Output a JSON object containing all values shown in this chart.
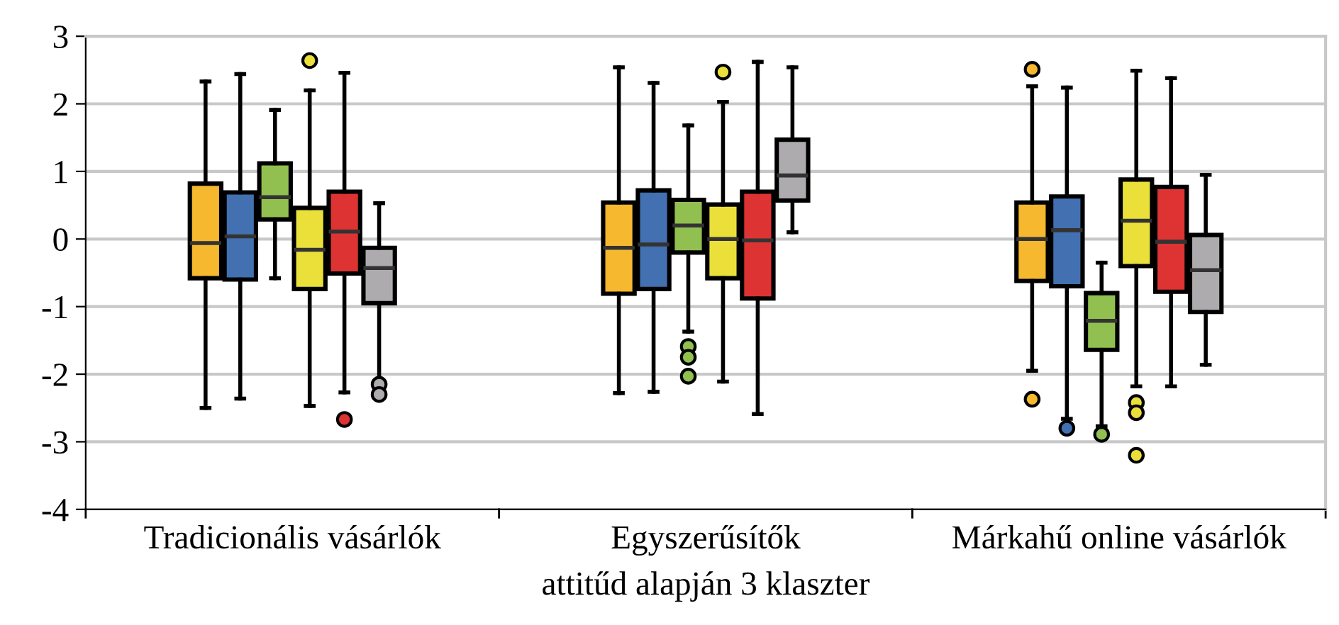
{
  "chart_data": {
    "type": "box",
    "xlabel": "attitűd alapján 3 klaszter",
    "categories": [
      "Tradicionális vásárlók",
      "Egyszerűsítők",
      "Márkahű online vásárlók"
    ],
    "ylim": [
      -4,
      3
    ],
    "yticks": [
      -4,
      -3,
      -2,
      -1,
      0,
      1,
      2,
      3
    ],
    "grid": "y",
    "series": [
      {
        "color": "#f5b82e",
        "boxes": [
          {
            "low": -2.5,
            "q1": -0.58,
            "median": -0.06,
            "q3": 0.82,
            "high": 2.33
          },
          {
            "low": -2.28,
            "q1": -0.81,
            "median": -0.13,
            "q3": 0.54,
            "high": 2.54
          },
          {
            "low": -1.95,
            "q1": -0.62,
            "median": 0.0,
            "q3": 0.54,
            "high": 2.26,
            "outliers": [
              2.51,
              -2.37
            ]
          }
        ]
      },
      {
        "color": "#4270b0",
        "boxes": [
          {
            "low": -2.36,
            "q1": -0.6,
            "median": 0.04,
            "q3": 0.69,
            "high": 2.44
          },
          {
            "low": -2.26,
            "q1": -0.74,
            "median": -0.08,
            "q3": 0.72,
            "high": 2.31
          },
          {
            "low": -2.66,
            "q1": -0.7,
            "median": 0.13,
            "q3": 0.63,
            "high": 2.24,
            "outliers": [
              -2.8
            ]
          }
        ]
      },
      {
        "color": "#92c050",
        "boxes": [
          {
            "low": -0.58,
            "q1": 0.29,
            "median": 0.62,
            "q3": 1.12,
            "high": 1.91
          },
          {
            "low": -1.37,
            "q1": -0.2,
            "median": 0.2,
            "q3": 0.58,
            "high": 1.68,
            "outliers": [
              -1.59,
              -1.75,
              -2.03
            ]
          },
          {
            "low": -2.77,
            "q1": -1.64,
            "median": -1.21,
            "q3": -0.8,
            "high": -0.35,
            "outliers": [
              -2.89
            ]
          }
        ]
      },
      {
        "color": "#ebe03a",
        "boxes": [
          {
            "low": -2.47,
            "q1": -0.74,
            "median": -0.16,
            "q3": 0.46,
            "high": 2.2,
            "outliers": [
              2.64
            ]
          },
          {
            "low": -2.11,
            "q1": -0.58,
            "median": 0.0,
            "q3": 0.51,
            "high": 2.03,
            "outliers": [
              2.47
            ]
          },
          {
            "low": -2.18,
            "q1": -0.4,
            "median": 0.27,
            "q3": 0.88,
            "high": 2.49,
            "outliers": [
              -2.42,
              -2.57,
              -3.2
            ]
          }
        ]
      },
      {
        "color": "#dd3333",
        "boxes": [
          {
            "low": -2.27,
            "q1": -0.51,
            "median": 0.11,
            "q3": 0.7,
            "high": 2.46,
            "outliers": [
              -2.67
            ]
          },
          {
            "low": -2.59,
            "q1": -0.88,
            "median": -0.02,
            "q3": 0.7,
            "high": 2.62
          },
          {
            "low": -2.18,
            "q1": -0.78,
            "median": -0.04,
            "q3": 0.77,
            "high": 2.38
          }
        ]
      },
      {
        "color": "#adabae",
        "boxes": [
          {
            "low": -2.1,
            "q1": -0.95,
            "median": -0.43,
            "q3": -0.13,
            "high": 0.53,
            "outliers": [
              -2.15,
              -2.3
            ]
          },
          {
            "low": 0.1,
            "q1": 0.57,
            "median": 0.94,
            "q3": 1.47,
            "high": 2.54
          },
          {
            "low": -1.86,
            "q1": -1.08,
            "median": -0.46,
            "q3": 0.06,
            "high": 0.95
          }
        ]
      }
    ]
  }
}
